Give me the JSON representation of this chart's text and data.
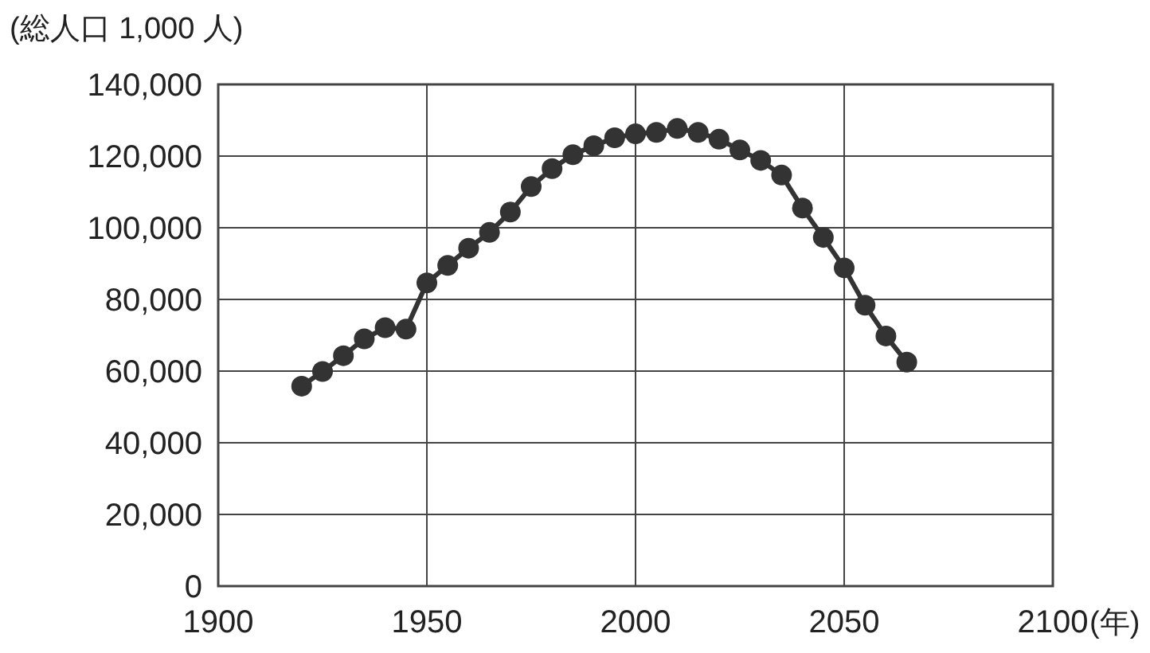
{
  "chart_data": {
    "type": "line",
    "ylabel": "(総人口 1,000 人)",
    "xlabel": "(年)",
    "x": [
      1920,
      1925,
      1930,
      1935,
      1940,
      1945,
      1950,
      1955,
      1960,
      1965,
      1970,
      1975,
      1980,
      1985,
      1990,
      1995,
      2000,
      2005,
      2010,
      2015,
      2020,
      2025,
      2030,
      2035,
      2040,
      2045,
      2050,
      2055,
      2060,
      2065
    ],
    "series": [
      {
        "color": "#333333",
        "values": [
          55800,
          59900,
          64300,
          69000,
          72100,
          71700,
          84600,
          89500,
          94300,
          98700,
          104400,
          111500,
          116500,
          120400,
          122900,
          125100,
          126200,
          126600,
          127700,
          126600,
          124700,
          121700,
          118800,
          114700,
          105500,
          97300,
          88800,
          78400,
          69800,
          62500
        ]
      }
    ],
    "xlim": [
      1900,
      2100
    ],
    "xticks": [
      1900,
      1950,
      2000,
      2050,
      2100
    ],
    "ylim": [
      0,
      140000
    ],
    "yticks": [
      {
        "value": 0,
        "label": "0"
      },
      {
        "value": 20000,
        "label": "20,000"
      },
      {
        "value": 40000,
        "label": "40,000"
      },
      {
        "value": 60000,
        "label": "60,000"
      },
      {
        "value": 80000,
        "label": "80,000"
      },
      {
        "value": 100000,
        "label": "100,000"
      },
      {
        "value": 120000,
        "label": "120,000"
      },
      {
        "value": 140000,
        "label": "140,000"
      }
    ],
    "grid": true,
    "marker": "circle",
    "line_style": "solid"
  }
}
